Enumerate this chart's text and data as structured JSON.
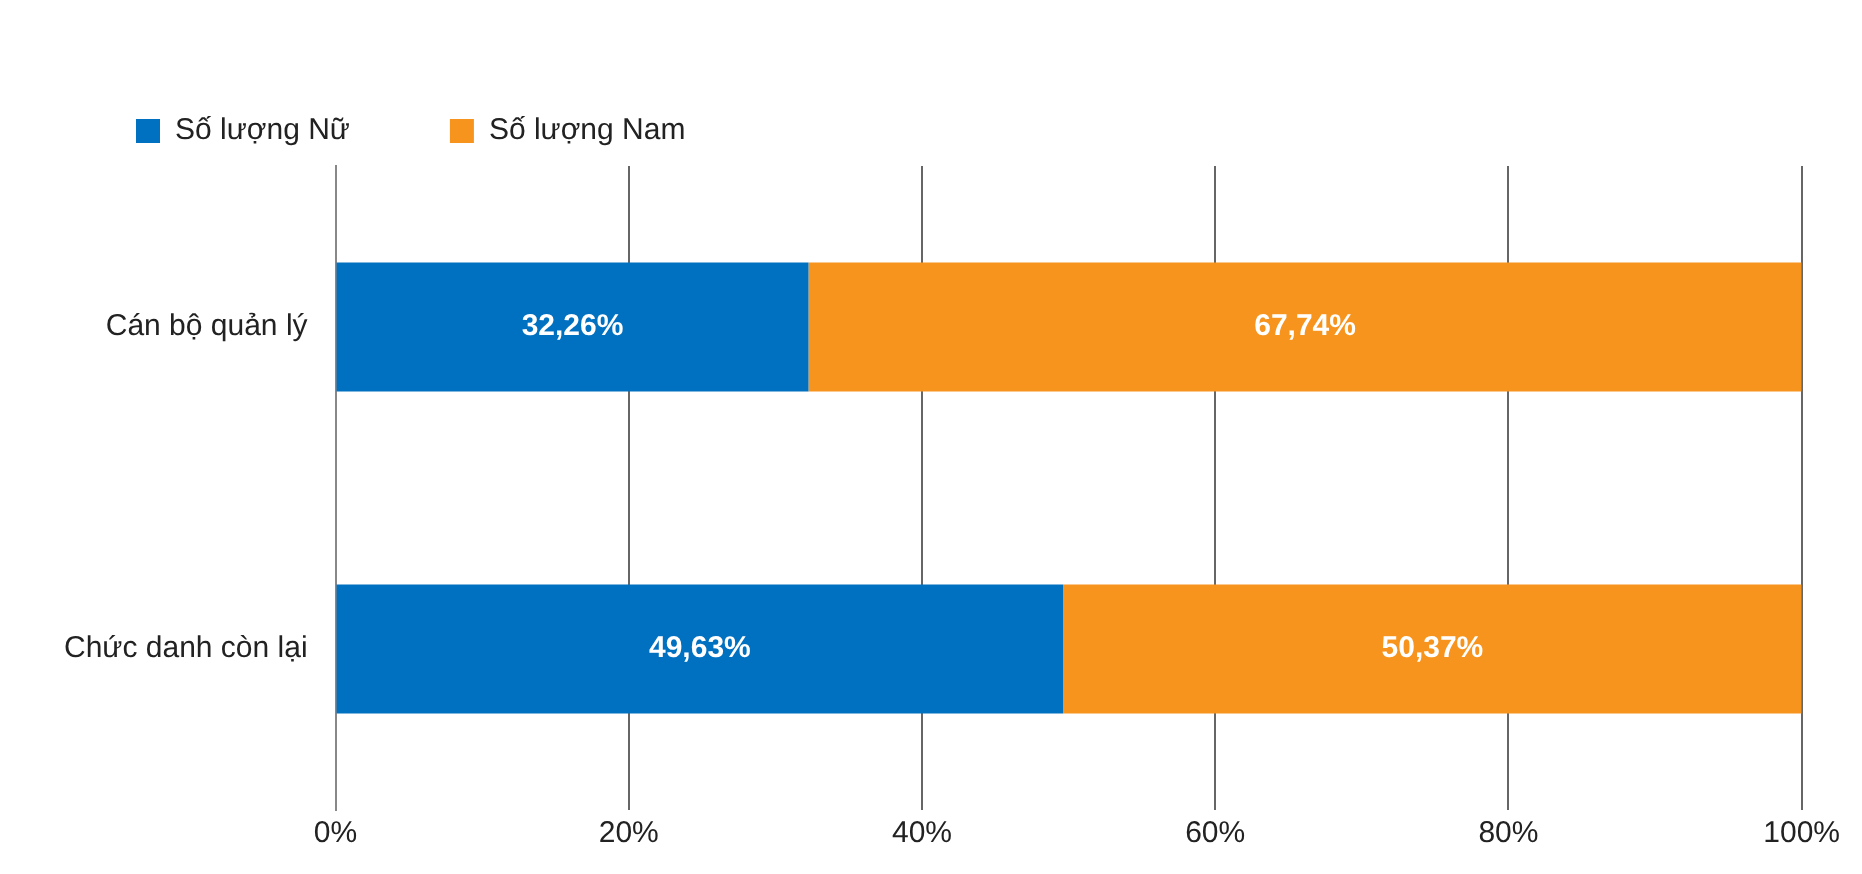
{
  "chart_data": {
    "type": "bar",
    "orientation": "horizontal",
    "stacked": true,
    "categories": [
      "Cán bộ quản lý",
      "Chức danh còn lại"
    ],
    "series": [
      {
        "name": "Số lượng Nữ",
        "color": "#0070c0",
        "values": [
          32.26,
          49.63
        ],
        "value_labels": [
          "32,26%",
          "49,63%"
        ]
      },
      {
        "name": "Số lượng Nam",
        "color": "#f7941d",
        "values": [
          67.74,
          50.37
        ],
        "value_labels": [
          "67,74%",
          "50,37%"
        ]
      }
    ],
    "xlim": [
      0,
      100
    ],
    "xticks": [
      {
        "value": 0,
        "label": "0%"
      },
      {
        "value": 20,
        "label": "20%"
      },
      {
        "value": 40,
        "label": "40%"
      },
      {
        "value": 60,
        "label": "60%"
      },
      {
        "value": 80,
        "label": "80%"
      },
      {
        "value": 100,
        "label": "100%"
      }
    ],
    "grid": "x",
    "legend": "top left"
  }
}
